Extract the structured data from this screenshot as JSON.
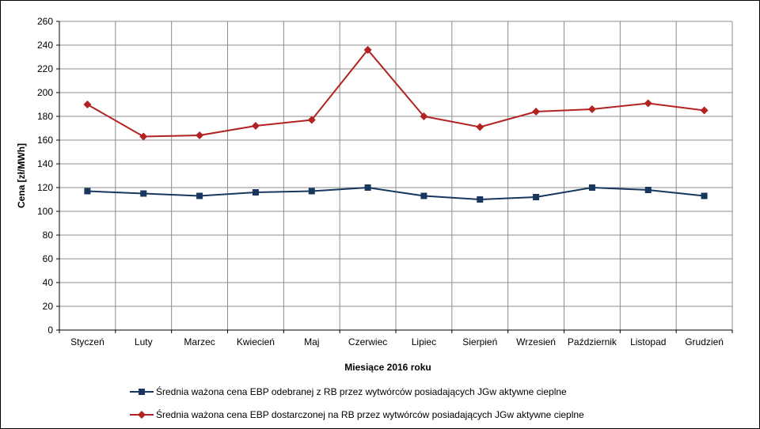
{
  "chart_data": {
    "type": "line",
    "title": "",
    "xlabel": "Miesiące 2016 roku",
    "ylabel": "Cena [zł/MWh]",
    "ylim": [
      0,
      260
    ],
    "ytick_step": 20,
    "grid": true,
    "legend_position": "bottom",
    "categories": [
      "Styczeń",
      "Luty",
      "Marzec",
      "Kwiecień",
      "Maj",
      "Czerwiec",
      "Lipiec",
      "Sierpień",
      "Wrzesień",
      "Październik",
      "Listopad",
      "Grudzień"
    ],
    "series": [
      {
        "name": "Średnia ważona cena EBP odebranej z RB przez wytwórców posiadających JGw aktywne cieplne",
        "color": "#17375E",
        "marker": "square",
        "values": [
          117,
          115,
          113,
          116,
          117,
          120,
          113,
          110,
          112,
          120,
          118,
          113
        ]
      },
      {
        "name": "Średnia ważona cena EBP dostarczonej na RB przez wytwórców posiadających JGw aktywne cieplne",
        "color": "#B22222",
        "marker": "diamond",
        "values": [
          190,
          163,
          164,
          172,
          177,
          236,
          180,
          171,
          184,
          186,
          191,
          185
        ]
      }
    ]
  }
}
